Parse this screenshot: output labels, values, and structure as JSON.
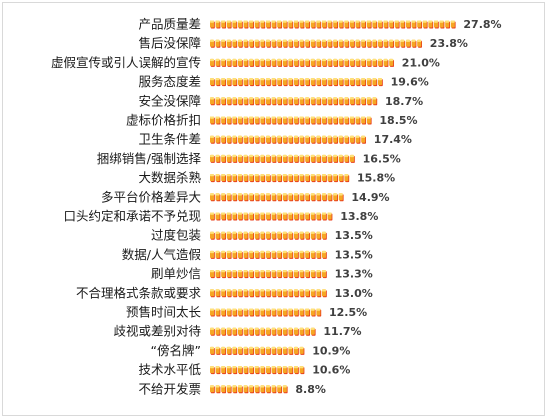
{
  "chart_data": {
    "type": "bar",
    "orientation": "horizontal",
    "categories": [
      "产品质量差",
      "售后没保障",
      "虚假宣传或引人误解的宣传",
      "服务态度差",
      "安全没保障",
      "虚标价格折扣",
      "卫生条件差",
      "捆绑销售/强制选择",
      "大数据杀熟",
      "多平台价格差异大",
      "口头约定和承诺不予兑现",
      "过度包装",
      "数据/人气造假",
      "刷单炒信",
      "不合理格式条款或要求",
      "预售时间太长",
      "歧视或差别对待",
      "“傍名牌”",
      "技术水平低",
      "不给开发票"
    ],
    "values": [
      27.8,
      23.8,
      21.0,
      19.6,
      18.7,
      18.5,
      17.4,
      16.5,
      15.8,
      14.9,
      13.8,
      13.5,
      13.5,
      13.3,
      13.0,
      12.5,
      11.7,
      10.9,
      10.6,
      8.8
    ],
    "value_labels": [
      "27.8%",
      "23.8%",
      "21.0%",
      "19.6%",
      "18.7%",
      "18.5%",
      "17.4%",
      "16.5%",
      "15.8%",
      "14.9%",
      "13.8%",
      "13.5%",
      "13.5%",
      "13.3%",
      "13.0%",
      "12.5%",
      "11.7%",
      "10.9%",
      "10.6%",
      "8.8%"
    ],
    "unit": "%",
    "xlim": [
      0,
      28
    ],
    "grid": false,
    "legend": "none",
    "bar_style": "pictograph-segments",
    "colors": {
      "segment_fill": "#f6a623",
      "segment_top": "#ffe27a",
      "segment_shadow": "#e8401c"
    }
  }
}
